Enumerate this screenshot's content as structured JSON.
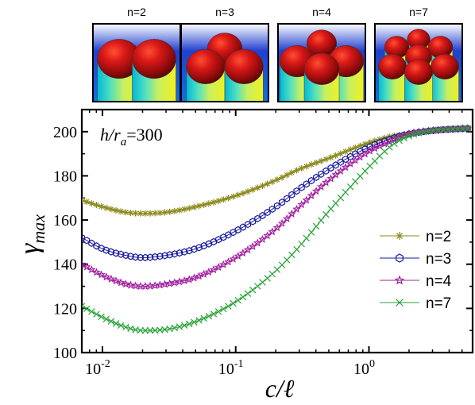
{
  "chart_data": {
    "type": "line",
    "title": "",
    "annotation": {
      "var": "h/r",
      "sub": "a",
      "value": "=300"
    },
    "xlabel": "c/ℓ",
    "ylabel": {
      "base": "γ",
      "sub": "max"
    },
    "xscale": "log",
    "xlim": [
      0.007,
      6
    ],
    "ylim": [
      100,
      210
    ],
    "yticks": [
      100,
      120,
      140,
      160,
      180,
      200
    ],
    "yticklabels": [
      "100",
      "120",
      "140",
      "160",
      "180",
      "200"
    ],
    "xticks": [
      0.01,
      0.1,
      1
    ],
    "xticklabels": [
      {
        "base": "10",
        "exp": "-2"
      },
      {
        "base": "10",
        "exp": "-1"
      },
      {
        "base": "10",
        "exp": "0"
      }
    ],
    "legend_position": "right",
    "series": [
      {
        "name": "n=2",
        "color": "#8b8b1e",
        "marker": "asterisk",
        "x": [
          0.007,
          0.01,
          0.015,
          0.02,
          0.03,
          0.05,
          0.1,
          0.2,
          0.3,
          0.5,
          1.0,
          1.5,
          2.0,
          3.0,
          5.5
        ],
        "y": [
          169,
          166,
          163.5,
          163,
          163.5,
          166,
          171,
          178,
          183,
          188,
          195,
          198,
          199,
          200.5,
          201.5
        ]
      },
      {
        "name": "n=3",
        "color": "#1a1a9e",
        "marker": "hexagon",
        "x": [
          0.007,
          0.01,
          0.015,
          0.02,
          0.03,
          0.05,
          0.1,
          0.2,
          0.3,
          0.5,
          1.0,
          1.5,
          2.0,
          3.0,
          5.5
        ],
        "y": [
          152,
          147,
          144,
          143,
          144,
          147,
          155,
          166,
          174,
          183,
          193,
          197,
          199,
          200.5,
          201.5
        ]
      },
      {
        "name": "n=4",
        "color": "#a0209e",
        "marker": "star",
        "x": [
          0.007,
          0.01,
          0.015,
          0.02,
          0.03,
          0.05,
          0.1,
          0.2,
          0.3,
          0.5,
          1.0,
          1.5,
          2.0,
          3.0,
          5.5
        ],
        "y": [
          140,
          135,
          131,
          130,
          131,
          134,
          143,
          156,
          166,
          178,
          191,
          196,
          199,
          200.5,
          201.5
        ]
      },
      {
        "name": "n=7",
        "color": "#27a336",
        "marker": "x",
        "x": [
          0.007,
          0.01,
          0.015,
          0.02,
          0.03,
          0.05,
          0.1,
          0.2,
          0.3,
          0.5,
          1.0,
          1.5,
          2.0,
          3.0,
          5.5
        ],
        "y": [
          121,
          116,
          111.5,
          110,
          110.5,
          114,
          123,
          137,
          148,
          164,
          184,
          194,
          198,
          200.5,
          201.5
        ]
      }
    ]
  },
  "thumbnails": [
    {
      "label": "n=2",
      "count": 2
    },
    {
      "label": "n=3",
      "count": 3
    },
    {
      "label": "n=4",
      "count": 4
    },
    {
      "label": "n=7",
      "count": 7
    }
  ]
}
